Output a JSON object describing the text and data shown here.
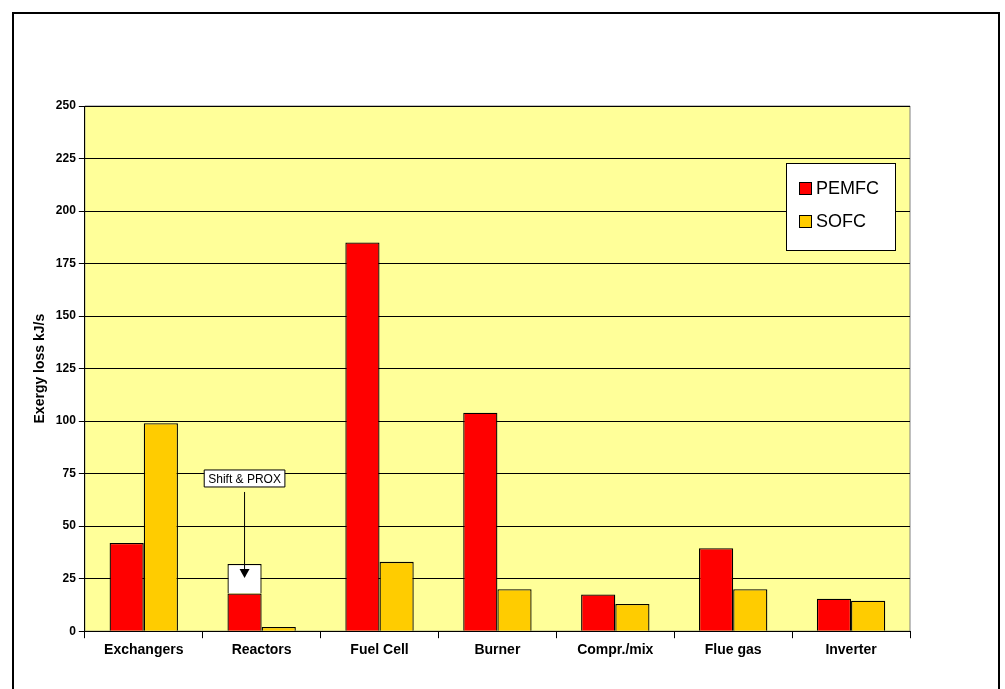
{
  "chart_data": {
    "type": "bar",
    "ylabel": "Exergy loss kJ/s",
    "categories": [
      "Exchangers",
      "Reactors",
      "Fuel Cell",
      "Burner",
      "Compr./mix",
      "Flue gas",
      "Inverter"
    ],
    "series": [
      {
        "name": "PEMFC",
        "color": "#ff0000",
        "values": [
          42,
          18,
          185,
          104,
          17.5,
          39.5,
          15.5
        ]
      },
      {
        "color": "#ffffff",
        "values": [
          null,
          14,
          null,
          null,
          null,
          null,
          null
        ],
        "base": [
          null,
          18,
          null,
          null,
          null,
          null,
          null
        ]
      },
      {
        "name": "SOFC",
        "color": "#ffcc00",
        "values": [
          99,
          2,
          33,
          20,
          13,
          20,
          14.5
        ]
      }
    ],
    "ylim": [
      0,
      250
    ],
    "yticks": [
      0,
      25,
      50,
      75,
      100,
      125,
      150,
      175,
      200,
      225,
      250
    ],
    "grid": "y",
    "legend": "top right",
    "annotations": [
      "Shift & PROX"
    ]
  }
}
